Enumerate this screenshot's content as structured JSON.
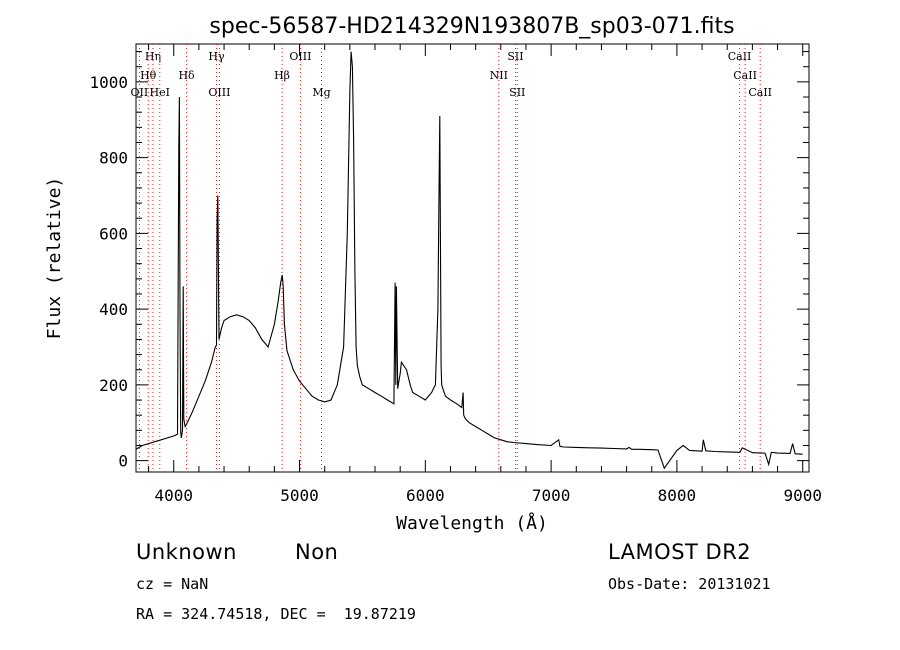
{
  "chart_data": {
    "type": "line",
    "title": "spec-56587-HD214329N193807B_sp03-071.fits",
    "xlabel": "Wavelength (Å)",
    "ylabel": "Flux (relative)",
    "xlim": [
      3700,
      9050
    ],
    "ylim": [
      -30,
      1100
    ],
    "x_ticks": [
      4000,
      5000,
      6000,
      7000,
      8000,
      9000
    ],
    "y_ticks": [
      0,
      200,
      400,
      600,
      800,
      1000
    ],
    "grid": false,
    "series": [
      {
        "x": [
          3700,
          3750,
          3800,
          3850,
          3900,
          3950,
          4000,
          4030,
          4040,
          4045,
          4050,
          4055,
          4060,
          4070,
          4075,
          4080,
          4090,
          4100,
          4150,
          4200,
          4250,
          4300,
          4330,
          4340,
          4345,
          4350,
          4360,
          4380,
          4400,
          4450,
          4500,
          4550,
          4600,
          4650,
          4700,
          4750,
          4800,
          4830,
          4850,
          4862,
          4870,
          4880,
          4900,
          4950,
          5000,
          5050,
          5100,
          5150,
          5200,
          5250,
          5300,
          5350,
          5380,
          5400,
          5410,
          5420,
          5430,
          5440,
          5450,
          5460,
          5480,
          5500,
          5550,
          5600,
          5650,
          5700,
          5750,
          5760,
          5765,
          5770,
          5780,
          5790,
          5800,
          5810,
          5850,
          5880,
          5900,
          5950,
          6000,
          6050,
          6080,
          6100,
          6110,
          6115,
          6120,
          6125,
          6130,
          6140,
          6160,
          6200,
          6250,
          6290,
          6300,
          6305,
          6320,
          6350,
          6400,
          6450,
          6500,
          6550,
          6600,
          6650,
          6700,
          6800,
          6900,
          7000,
          7060,
          7070,
          7080,
          7100,
          7200,
          7300,
          7400,
          7500,
          7600,
          7620,
          7640,
          7700,
          7800,
          7850,
          7900,
          8000,
          8050,
          8100,
          8150,
          8200,
          8210,
          8230,
          8300,
          8400,
          8500,
          8520,
          8600,
          8700,
          8730,
          8750,
          8800,
          8900,
          8920,
          8940,
          9000
        ],
        "values": [
          30,
          40,
          45,
          50,
          55,
          60,
          65,
          70,
          830,
          960,
          400,
          75,
          60,
          80,
          460,
          110,
          90,
          95,
          130,
          170,
          210,
          260,
          300,
          305,
          640,
          700,
          320,
          350,
          370,
          380,
          385,
          380,
          370,
          350,
          320,
          300,
          360,
          420,
          470,
          490,
          460,
          360,
          290,
          240,
          210,
          190,
          170,
          160,
          155,
          160,
          200,
          300,
          600,
          980,
          1080,
          1040,
          850,
          500,
          300,
          250,
          220,
          200,
          190,
          180,
          170,
          160,
          150,
          470,
          200,
          460,
          190,
          210,
          230,
          260,
          240,
          200,
          180,
          170,
          160,
          180,
          200,
          400,
          760,
          910,
          600,
          250,
          200,
          190,
          170,
          160,
          150,
          140,
          180,
          120,
          110,
          100,
          90,
          80,
          70,
          60,
          55,
          50,
          48,
          45,
          42,
          40,
          55,
          38,
          37,
          36,
          35,
          34,
          33,
          32,
          31,
          35,
          30,
          30,
          29,
          28,
          -20,
          27,
          40,
          27,
          26,
          25,
          55,
          26,
          24,
          23,
          22,
          34,
          21,
          20,
          -10,
          22,
          20,
          19,
          45,
          18,
          17
        ]
      }
    ],
    "lines": [
      {
        "label": "Hη",
        "x": 3835
      },
      {
        "label": "Hθ",
        "x": 3797
      },
      {
        "label": "OII",
        "x": 3727
      },
      {
        "label": "HeI",
        "x": 3889
      },
      {
        "label": "Hδ",
        "x": 4102
      },
      {
        "label": "Hγ",
        "x": 4340
      },
      {
        "label": "OIII",
        "x": 4363
      },
      {
        "label": "Hβ",
        "x": 4861
      },
      {
        "label": "OIII",
        "x": 5007
      },
      {
        "label": "Mg",
        "x": 5175
      },
      {
        "label": "NII",
        "x": 6584
      },
      {
        "label": "SII",
        "x": 6717
      },
      {
        "label": "SII",
        "x": 6731
      },
      {
        "label": "CaII",
        "x": 8498
      },
      {
        "label": "CaII",
        "x": 8542
      },
      {
        "label": "CaII",
        "x": 8662
      }
    ]
  },
  "info": {
    "class": "Unknown",
    "subclass": "Non",
    "survey": "LAMOST DR2",
    "cz": "cz = NaN",
    "obs_date": "Obs-Date: 20131021",
    "radec": "RA = 324.74518, DEC =  19.87219"
  },
  "colors": {
    "axis": "#000000",
    "spectrum": "#000000",
    "line_marker": "#e02020"
  }
}
